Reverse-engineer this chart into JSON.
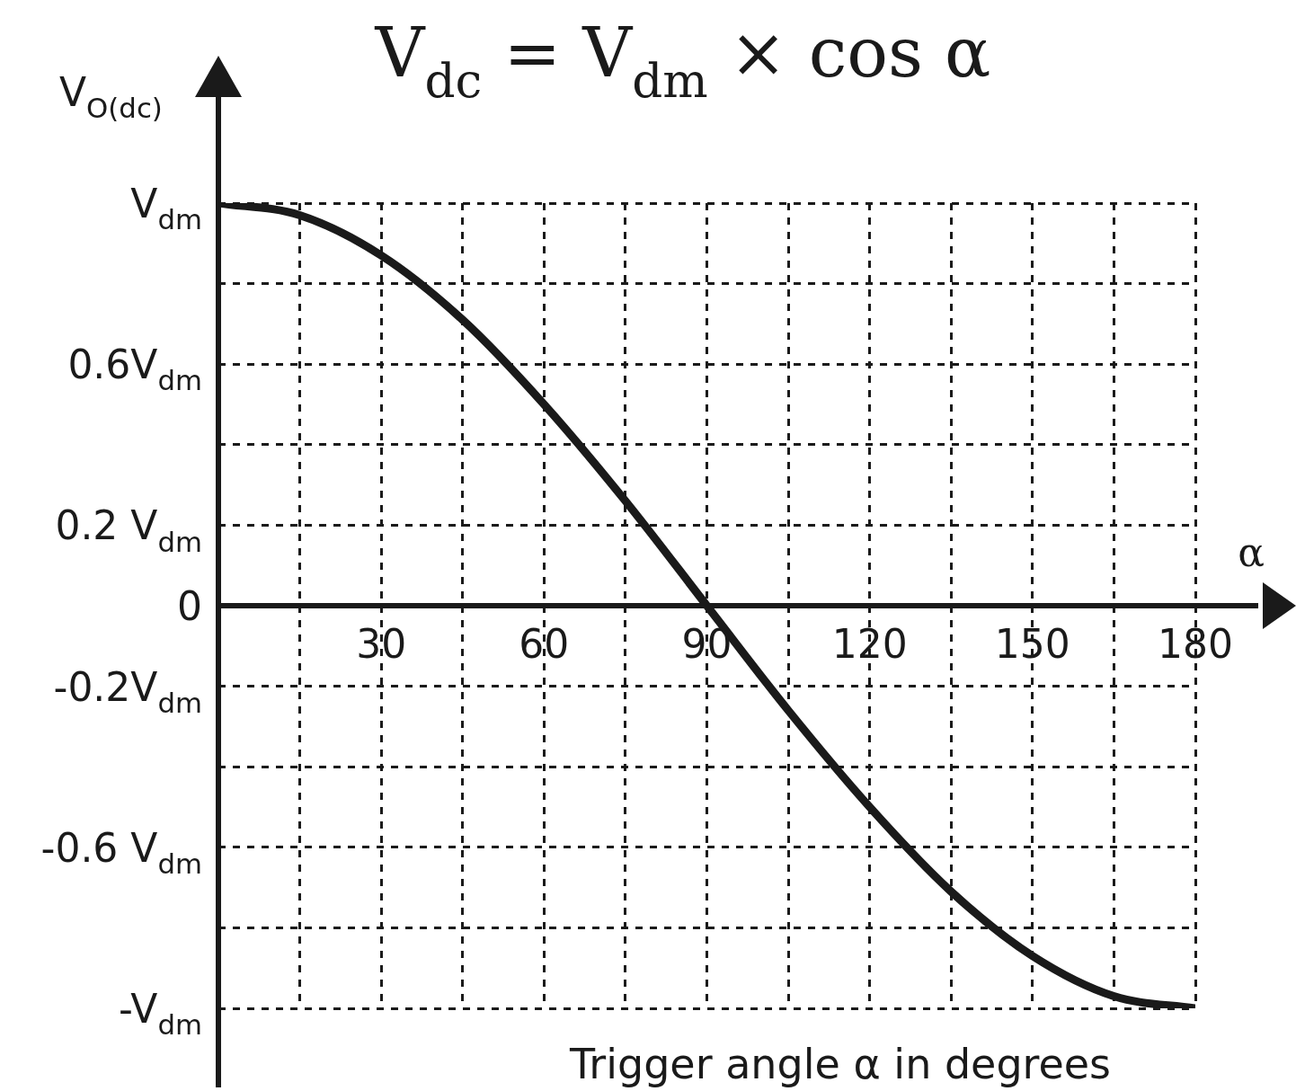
{
  "chart_data": {
    "type": "line",
    "title": "V$_{dc}$ = V$_{dm}$ × cos α",
    "xlabel": "Trigger angle α in degrees",
    "ylabel": "V$_{O(dc)}$",
    "annotations": [
      "α"
    ],
    "x": [
      0,
      15,
      30,
      45,
      60,
      75,
      90,
      105,
      120,
      135,
      150,
      165,
      180
    ],
    "values": [
      1,
      0.97,
      0.87,
      0.71,
      0.5,
      0.26,
      0,
      -0.26,
      -0.5,
      -0.71,
      -0.87,
      -0.97,
      -1
    ],
    "color": "#1a1a1a",
    "marker": "none",
    "grid": true,
    "xlim": [
      0,
      180
    ],
    "ylim": [
      -1,
      1
    ],
    "xticks": [
      {
        "value": 15,
        "label": null
      },
      30,
      {
        "value": 45,
        "label": null
      },
      60,
      {
        "value": 75,
        "label": null
      },
      90,
      {
        "value": 105,
        "label": null
      },
      120,
      {
        "value": 135,
        "label": null
      },
      150,
      {
        "value": 165,
        "label": null
      },
      180
    ],
    "yticks": [
      {
        "value": 1,
        "label": "V$_{dm}$"
      },
      {
        "value": 0.8,
        "label": null
      },
      {
        "value": 0.6,
        "label": "0.6V$_{dm}$"
      },
      {
        "value": 0.4,
        "label": null
      },
      {
        "value": 0.2,
        "label": "0.2 V$_{dm}$"
      },
      {
        "value": 0,
        "label": "0"
      },
      {
        "value": -0.2,
        "label": "-0.2V$_{dm}$"
      },
      {
        "value": -0.4,
        "label": null
      },
      {
        "value": -0.6,
        "label": "-0.6 V$_{dm}$"
      },
      {
        "value": -0.8,
        "label": null
      },
      {
        "value": -1,
        "label": "-V$_{dm}$"
      }
    ]
  }
}
